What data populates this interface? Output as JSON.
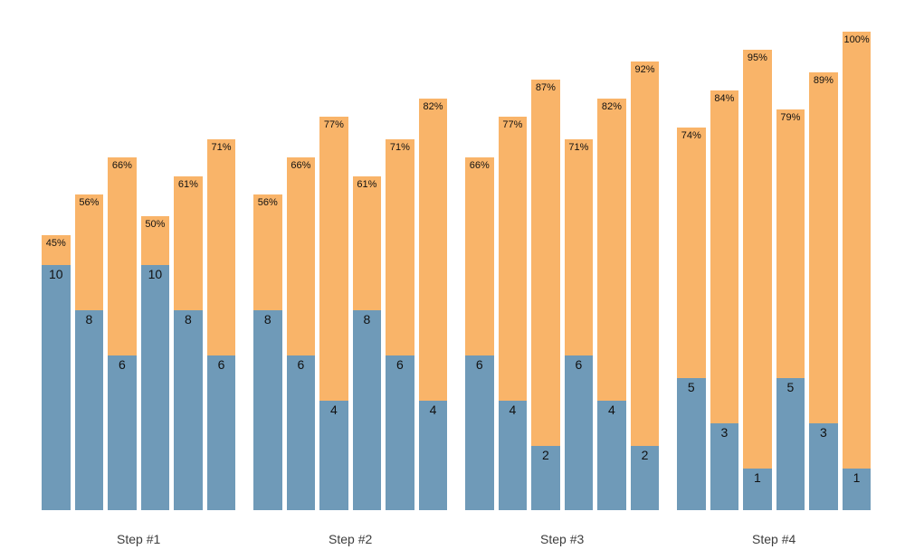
{
  "chart_data": {
    "type": "bar",
    "stacked": true,
    "title": "",
    "xlabel": "",
    "ylabel": "",
    "grid": false,
    "legend": null,
    "axes_visible": false,
    "categories": [
      "Step #1",
      "Step #2",
      "Step #3",
      "Step #4"
    ],
    "segment_roles": {
      "bottom": "count value (blue)",
      "top": "completion percent (orange)"
    },
    "groups": [
      {
        "label": "Step #1",
        "bars": [
          {
            "value": 10,
            "value_label": "10",
            "percent": 45,
            "percent_label": "45%"
          },
          {
            "value": 8,
            "value_label": "8",
            "percent": 56,
            "percent_label": "56%"
          },
          {
            "value": 6,
            "value_label": "6",
            "percent": 66,
            "percent_label": "66%"
          },
          {
            "value": 10,
            "value_label": "10",
            "percent": 50,
            "percent_label": "50%"
          },
          {
            "value": 8,
            "value_label": "8",
            "percent": 61,
            "percent_label": "61%"
          },
          {
            "value": 6,
            "value_label": "6",
            "percent": 71,
            "percent_label": "71%"
          }
        ]
      },
      {
        "label": "Step #2",
        "bars": [
          {
            "value": 8,
            "value_label": "8",
            "percent": 56,
            "percent_label": "56%"
          },
          {
            "value": 6,
            "value_label": "6",
            "percent": 66,
            "percent_label": "66%"
          },
          {
            "value": 4,
            "value_label": "4",
            "percent": 77,
            "percent_label": "77%"
          },
          {
            "value": 8,
            "value_label": "8",
            "percent": 61,
            "percent_label": "61%"
          },
          {
            "value": 6,
            "value_label": "6",
            "percent": 71,
            "percent_label": "71%"
          },
          {
            "value": 4,
            "value_label": "4",
            "percent": 82,
            "percent_label": "82%"
          }
        ]
      },
      {
        "label": "Step #3",
        "bars": [
          {
            "value": 6,
            "value_label": "6",
            "percent": 66,
            "percent_label": "66%"
          },
          {
            "value": 4,
            "value_label": "4",
            "percent": 77,
            "percent_label": "77%"
          },
          {
            "value": 2,
            "value_label": "2",
            "percent": 87,
            "percent_label": "87%"
          },
          {
            "value": 6,
            "value_label": "6",
            "percent": 71,
            "percent_label": "71%"
          },
          {
            "value": 4,
            "value_label": "4",
            "percent": 82,
            "percent_label": "82%"
          },
          {
            "value": 2,
            "value_label": "2",
            "percent": 92,
            "percent_label": "92%"
          }
        ]
      },
      {
        "label": "Step #4",
        "bars": [
          {
            "value": 5,
            "value_label": "5",
            "percent": 74,
            "percent_label": "74%"
          },
          {
            "value": 3,
            "value_label": "3",
            "percent": 84,
            "percent_label": "84%"
          },
          {
            "value": 1,
            "value_label": "1",
            "percent": 95,
            "percent_label": "95%"
          },
          {
            "value": 5,
            "value_label": "5",
            "percent": 79,
            "percent_label": "79%"
          },
          {
            "value": 3,
            "value_label": "3",
            "percent": 89,
            "percent_label": "89%"
          },
          {
            "value": 1,
            "value_label": "1",
            "percent": 100,
            "percent_label": "100%"
          }
        ]
      }
    ]
  },
  "colors": {
    "bottom_segment": "#6F9AB8",
    "top_segment": "#F9B469",
    "bar_label_text": "#111111",
    "group_label_text": "#3d3d3d",
    "background": "#ffffff"
  }
}
